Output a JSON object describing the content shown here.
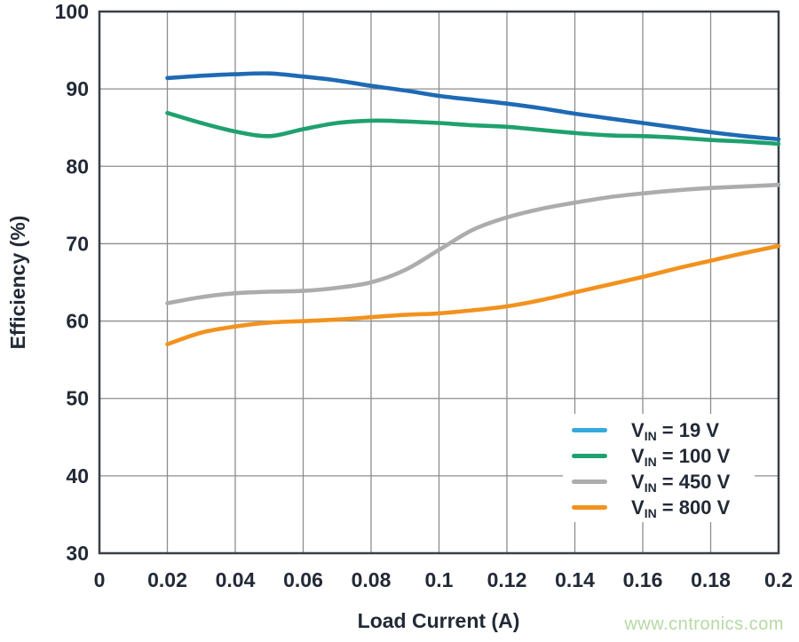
{
  "page": {
    "background": "#ffffff",
    "watermark": {
      "text": "www.cntronics.com",
      "color": "#b6d9a5"
    }
  },
  "chart_data": {
    "type": "line",
    "title": "",
    "xlabel": "Load Current (A)",
    "ylabel": "Efficiency (%)",
    "xlim": [
      0,
      0.2
    ],
    "ylim": [
      30,
      100
    ],
    "grid": true,
    "legend_position": "inside-bottom-right",
    "x_ticks": [
      0,
      0.02,
      0.04,
      0.06,
      0.08,
      0.1,
      0.12,
      0.14,
      0.16,
      0.18,
      0.2
    ],
    "x_tick_labels": [
      "0",
      "0.02",
      "0.04",
      "0.06",
      "0.08",
      "0.1",
      "0.12",
      "0.14",
      "0.16",
      "0.18",
      "0.2"
    ],
    "y_ticks": [
      30,
      40,
      50,
      60,
      70,
      80,
      90,
      100
    ],
    "y_tick_labels": [
      "30",
      "40",
      "50",
      "60",
      "70",
      "80",
      "90",
      "100"
    ],
    "x": [
      0.02,
      0.03,
      0.04,
      0.05,
      0.06,
      0.07,
      0.08,
      0.09,
      0.1,
      0.11,
      0.12,
      0.13,
      0.14,
      0.15,
      0.16,
      0.17,
      0.18,
      0.19,
      0.2
    ],
    "series": [
      {
        "name": "VIN = 19 V",
        "legend": {
          "v": "V",
          "sub": "IN",
          "rest": " = 19 V"
        },
        "color": "#1e6ab4",
        "legend_color": "#36a9dd",
        "values": [
          91.4,
          91.7,
          91.9,
          92.0,
          91.6,
          91.1,
          90.4,
          89.8,
          89.1,
          88.6,
          88.1,
          87.5,
          86.8,
          86.2,
          85.6,
          85.0,
          84.4,
          83.9,
          83.5
        ]
      },
      {
        "name": "VIN = 100 V",
        "legend": {
          "v": "V",
          "sub": "IN",
          "rest": " = 100 V"
        },
        "color": "#1fa16e",
        "legend_color": "#1fa16e",
        "values": [
          86.9,
          85.6,
          84.5,
          83.9,
          84.8,
          85.6,
          85.9,
          85.8,
          85.6,
          85.3,
          85.1,
          84.7,
          84.3,
          84.0,
          83.9,
          83.7,
          83.4,
          83.2,
          82.9
        ]
      },
      {
        "name": "VIN = 450 V",
        "legend": {
          "v": "V",
          "sub": "IN",
          "rest": " = 450 V"
        },
        "color": "#acacac",
        "legend_color": "#acacac",
        "values": [
          62.3,
          63.1,
          63.6,
          63.8,
          63.9,
          64.3,
          65.0,
          66.6,
          69.2,
          71.8,
          73.4,
          74.5,
          75.3,
          76.0,
          76.5,
          76.9,
          77.2,
          77.4,
          77.6
        ]
      },
      {
        "name": "VIN = 800 V",
        "legend": {
          "v": "V",
          "sub": "IN",
          "rest": " = 800 V"
        },
        "color": "#f2921e",
        "legend_color": "#f2921e",
        "values": [
          57.0,
          58.5,
          59.3,
          59.8,
          60.0,
          60.2,
          60.5,
          60.8,
          61.0,
          61.4,
          61.9,
          62.7,
          63.7,
          64.7,
          65.7,
          66.8,
          67.8,
          68.8,
          69.7
        ]
      }
    ],
    "style": {
      "grid_color": "#8d8d8d",
      "frame_color": "#3a3f46",
      "text_color": "#222a36"
    }
  }
}
